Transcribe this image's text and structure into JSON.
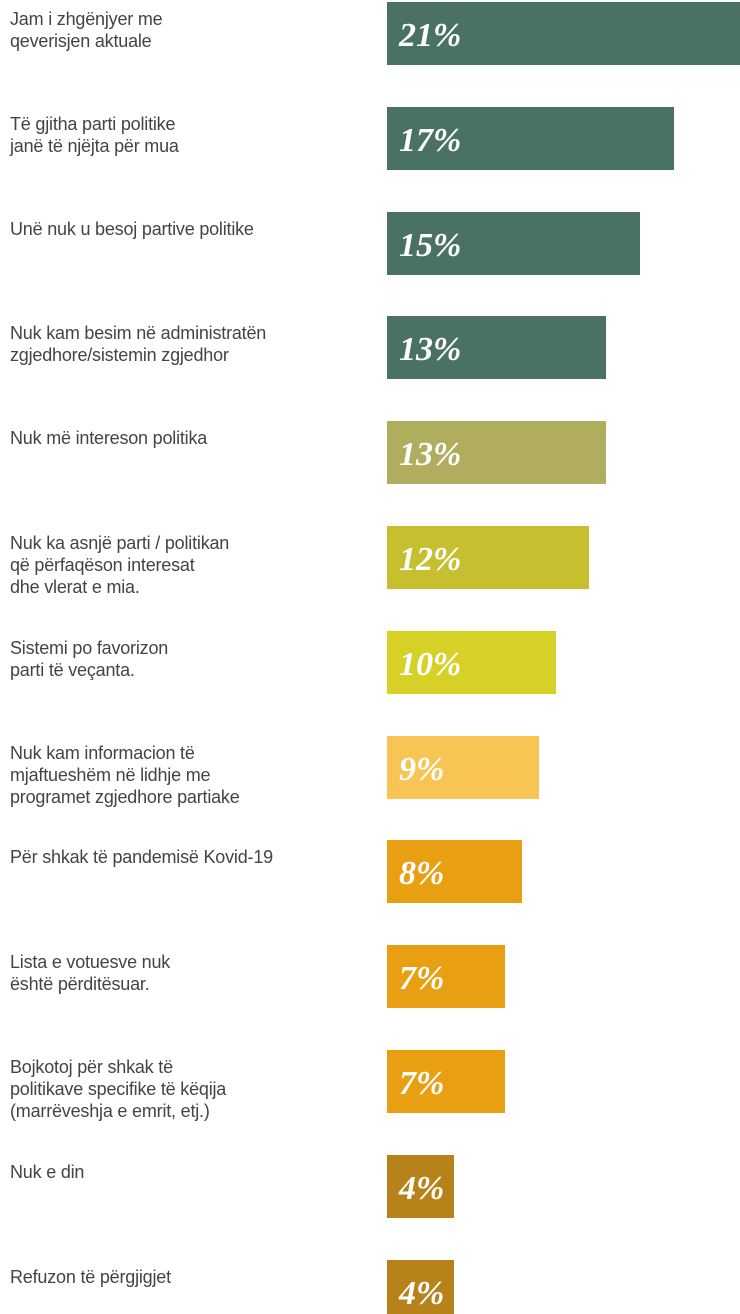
{
  "chart_data": {
    "type": "bar",
    "orientation": "horizontal",
    "categories": [
      "Jam i zhgënjyer me\nqeverisjen aktuale",
      "Të gjitha parti politike\njanë të njëjta për mua",
      "Unë nuk u besoj partive politike",
      "Nuk kam besim në administratën\nzgjedhore/sistemin zgjedhor",
      "Nuk më intereson politika",
      "Nuk ka asnjë parti / politikan\nqë përfaqëson interesat\ndhe vlerat e mia.",
      "Sistemi po favorizon\nparti të veçanta.",
      "Nuk kam informacion të\nmjaftueshëm në lidhje me\nprogramet zgjedhore partiake",
      "Për shkak të pandemisë Kovid-19",
      "Lista e votuesve nuk\nështë përditësuar.",
      "Bojkotoj për shkak të\npolitikave specifike të këqija\n(marrëveshja e emrit, etj.)",
      "Nuk e din",
      "Refuzon të përgjigjet"
    ],
    "values": [
      21,
      17,
      15,
      13,
      13,
      12,
      10,
      9,
      8,
      7,
      7,
      4,
      4
    ],
    "value_labels": [
      "21%",
      "17%",
      "15%",
      "13%",
      "13%",
      "12%",
      "10%",
      "9%",
      "8%",
      "7%",
      "7%",
      "4%",
      "4%"
    ],
    "colors": [
      "#4a7262",
      "#4a7262",
      "#4a7262",
      "#4a7262",
      "#b0ad5e",
      "#c6c030",
      "#d7d027",
      "#f8c453",
      "#e89f12",
      "#e89f12",
      "#e89f12",
      "#b8821a",
      "#b8821a"
    ]
  }
}
